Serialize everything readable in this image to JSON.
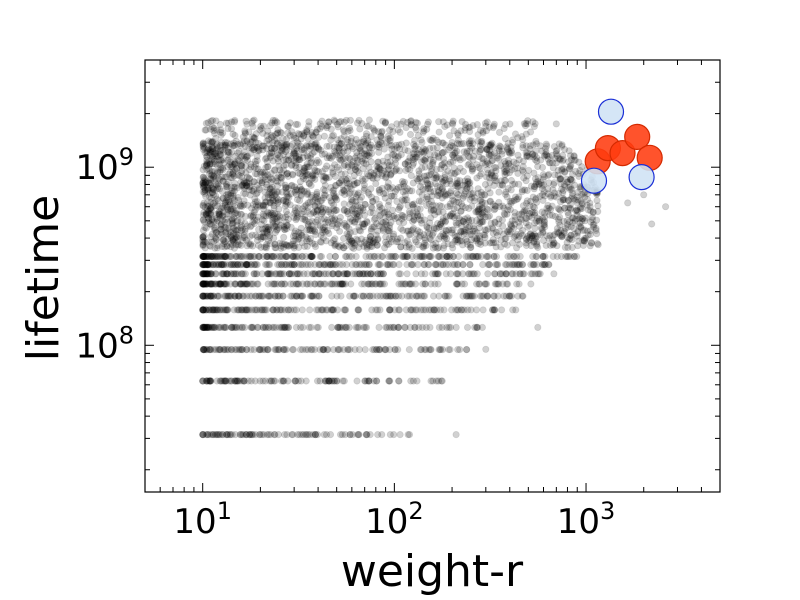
{
  "chart_data": {
    "type": "scatter",
    "title": "",
    "xlabel": "weight-r",
    "ylabel": "lifetime",
    "xscale": "log",
    "yscale": "log",
    "xlim": [
      5,
      5000
    ],
    "ylim": [
      15000000,
      4000000000
    ],
    "x_ticks": [
      {
        "value": 10,
        "base": "10",
        "exp": "1"
      },
      {
        "value": 100,
        "base": "10",
        "exp": "2"
      },
      {
        "value": 1000,
        "base": "10",
        "exp": "3"
      }
    ],
    "y_ticks": [
      {
        "value": 100000000,
        "base": "10",
        "exp": "8"
      },
      {
        "value": 1000000000,
        "base": "10",
        "exp": "9"
      }
    ],
    "grid": false,
    "legend": "none",
    "series": [
      {
        "style": "dense-background",
        "color": "#000000",
        "opacity": 0.18,
        "x_range": [
          10,
          2600
        ],
        "lifetime_levels": [
          31500000,
          63000000,
          94600000,
          126000000,
          158000000,
          189000000,
          221000000,
          252000000,
          284000000,
          315000000
        ],
        "level_x_max": [
          120,
          180,
          250,
          300,
          420,
          500,
          600,
          700,
          800,
          900
        ],
        "dense_band": [
          350000000,
          1400000000
        ],
        "points": [
          [
            120,
            31500000
          ],
          [
            210,
            31500000
          ],
          [
            170,
            63000000
          ],
          [
            300,
            95000000
          ],
          [
            560,
            126000000
          ],
          [
            430,
            158000000
          ],
          [
            1050,
            600000000
          ],
          [
            1650,
            630000000
          ],
          [
            2200,
            480000000
          ],
          [
            2600,
            600000000
          ],
          [
            2000,
            700000000
          ],
          [
            300,
            1700000000
          ],
          [
            180,
            1800000000
          ],
          [
            700,
            1750000000
          ]
        ]
      },
      {
        "style": "highlight",
        "color": "#ff3b0f",
        "stroke": "#d42a00",
        "points": [
          [
            1150,
            1080000000
          ],
          [
            1300,
            1280000000
          ],
          [
            1550,
            1200000000
          ],
          [
            1850,
            1480000000
          ],
          [
            2150,
            1130000000
          ]
        ]
      },
      {
        "style": "highlight",
        "color": "#cfe3f5",
        "stroke": "#1a2fd6",
        "points": [
          [
            1350,
            2050000000
          ],
          [
            1100,
            840000000
          ],
          [
            1950,
            880000000
          ]
        ]
      }
    ]
  }
}
